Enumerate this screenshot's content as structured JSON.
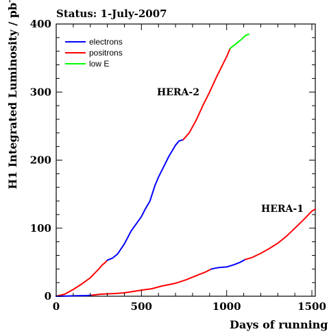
{
  "chart_data": {
    "type": "line",
    "title": "Status:  1-July-2007",
    "xlabel": "Days of running",
    "ylabel_main": "H1 Integrated Luminosity / pb",
    "ylabel_sup": "-1",
    "xlim": [
      0,
      1520
    ],
    "ylim": [
      0,
      400
    ],
    "x_ticks": [
      0,
      500,
      1000,
      1500
    ],
    "y_ticks": [
      0,
      100,
      200,
      300,
      400
    ],
    "grid": false,
    "legend_position": "top-left",
    "legend": [
      {
        "name": "electrons",
        "color": "#0000ff"
      },
      {
        "name": "positrons",
        "color": "#ff0000"
      },
      {
        "name": "low E",
        "color": "#00ff00"
      }
    ],
    "annotations": [
      {
        "text": "HERA-2",
        "x": 590,
        "y": 296
      },
      {
        "text": "HERA-1",
        "x": 1210,
        "y": 124
      }
    ],
    "series": [
      {
        "group": "HERA-2",
        "kind": "positrons",
        "color": "#ff0000",
        "points": [
          [
            0,
            0
          ],
          [
            50,
            3
          ],
          [
            100,
            10
          ],
          [
            150,
            18
          ],
          [
            200,
            27
          ],
          [
            230,
            35
          ],
          [
            250,
            40
          ],
          [
            270,
            46
          ],
          [
            285,
            49
          ],
          [
            300,
            53
          ]
        ]
      },
      {
        "group": "HERA-2",
        "kind": "electrons",
        "color": "#0000ff",
        "points": [
          [
            300,
            53
          ],
          [
            330,
            56
          ],
          [
            360,
            62
          ],
          [
            400,
            77
          ],
          [
            440,
            96
          ],
          [
            480,
            110
          ],
          [
            500,
            117
          ],
          [
            520,
            127
          ],
          [
            550,
            140
          ],
          [
            580,
            163
          ],
          [
            600,
            175
          ],
          [
            630,
            190
          ],
          [
            660,
            205
          ],
          [
            700,
            222
          ],
          [
            720,
            228
          ],
          [
            745,
            230
          ]
        ]
      },
      {
        "group": "HERA-2",
        "kind": "positrons",
        "color": "#ff0000",
        "points": [
          [
            745,
            230
          ],
          [
            780,
            240
          ],
          [
            820,
            258
          ],
          [
            860,
            280
          ],
          [
            900,
            300
          ],
          [
            940,
            322
          ],
          [
            980,
            342
          ],
          [
            1000,
            352
          ],
          [
            1020,
            364
          ]
        ]
      },
      {
        "group": "HERA-2",
        "kind": "low E",
        "color": "#00ff00",
        "points": [
          [
            1020,
            364
          ],
          [
            1050,
            370
          ],
          [
            1080,
            376
          ],
          [
            1110,
            383
          ],
          [
            1130,
            385
          ]
        ]
      },
      {
        "group": "HERA-1",
        "kind": "electrons",
        "color": "#0000ff",
        "points": [
          [
            0,
            0
          ],
          [
            60,
            0.3
          ],
          [
            120,
            0.7
          ],
          [
            180,
            1
          ],
          [
            210,
            1.5
          ]
        ]
      },
      {
        "group": "HERA-1",
        "kind": "positrons",
        "color": "#ff0000",
        "points": [
          [
            210,
            1.5
          ],
          [
            260,
            3
          ],
          [
            350,
            4
          ],
          [
            400,
            5
          ],
          [
            450,
            7
          ],
          [
            500,
            9
          ],
          [
            560,
            11
          ],
          [
            620,
            15
          ],
          [
            700,
            19
          ],
          [
            760,
            24
          ],
          [
            820,
            30
          ],
          [
            880,
            36
          ],
          [
            910,
            40
          ]
        ]
      },
      {
        "group": "HERA-1",
        "kind": "electrons",
        "color": "#0000ff",
        "points": [
          [
            910,
            40
          ],
          [
            950,
            42
          ],
          [
            1000,
            43
          ],
          [
            1040,
            46
          ],
          [
            1080,
            50
          ],
          [
            1110,
            54
          ]
        ]
      },
      {
        "group": "HERA-1",
        "kind": "positrons",
        "color": "#ff0000",
        "points": [
          [
            1110,
            54
          ],
          [
            1150,
            57
          ],
          [
            1200,
            63
          ],
          [
            1250,
            70
          ],
          [
            1300,
            78
          ],
          [
            1350,
            88
          ],
          [
            1400,
            100
          ],
          [
            1450,
            112
          ],
          [
            1500,
            125
          ],
          [
            1520,
            128
          ]
        ]
      }
    ]
  }
}
